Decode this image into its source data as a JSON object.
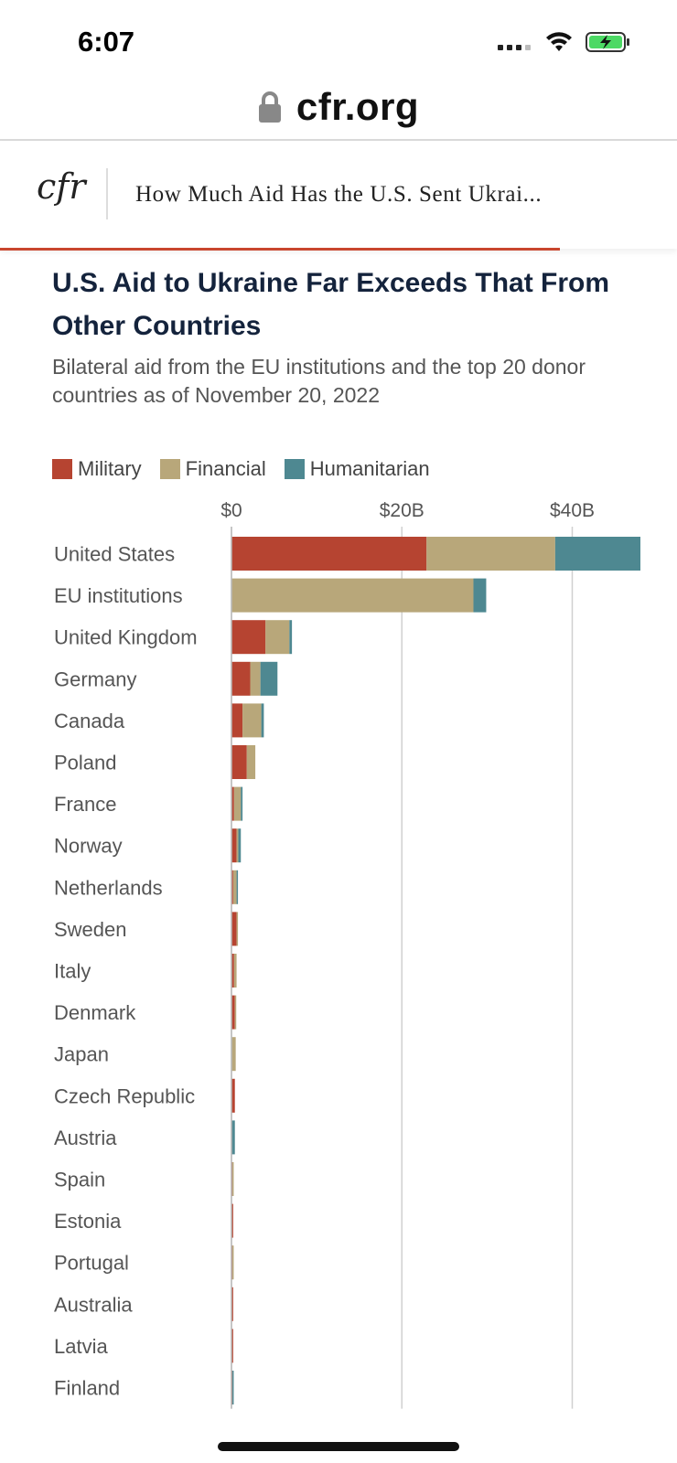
{
  "status_bar": {
    "time": "6:07"
  },
  "browser": {
    "url": "cfr.org"
  },
  "header": {
    "logo": "cfr",
    "article_title": "How Much Aid Has the U.S. Sent Ukrai..."
  },
  "colors": {
    "military": "#b64431",
    "financial": "#b8a77a",
    "humanitarian": "#4e8891",
    "accent": "#c9462e"
  },
  "chart_data": {
    "type": "bar",
    "orientation": "horizontal",
    "stacked": true,
    "title": "U.S. Aid to Ukraine Far Exceeds That From Other Countries",
    "subtitle": "Bilateral aid from the EU institutions and the top 20 donor countries as of November 20, 2022",
    "xlim": [
      0,
      48
    ],
    "xticks": [
      0,
      20,
      40
    ],
    "xtick_labels": [
      "$0",
      "$20B",
      "$40B"
    ],
    "legend": [
      "Military",
      "Financial",
      "Humanitarian"
    ],
    "categories": [
      "United States",
      "EU institutions",
      "United Kingdom",
      "Germany",
      "Canada",
      "Poland",
      "France",
      "Norway",
      "Netherlands",
      "Sweden",
      "Italy",
      "Denmark",
      "Japan",
      "Czech Republic",
      "Austria",
      "Spain",
      "Estonia",
      "Portugal",
      "Australia",
      "Latvia",
      "Finland"
    ],
    "series": [
      {
        "name": "Military",
        "values": [
          22.9,
          0,
          4.0,
          2.2,
          1.3,
          1.8,
          0.3,
          0.6,
          0.2,
          0.6,
          0.3,
          0.4,
          0,
          0.4,
          0,
          0.1,
          0.2,
          0.1,
          0.2,
          0.2,
          0.1
        ]
      },
      {
        "name": "Financial",
        "values": [
          15.1,
          28.4,
          2.8,
          1.2,
          2.2,
          1.0,
          0.8,
          0.2,
          0.4,
          0.1,
          0.3,
          0.1,
          0.5,
          0,
          0,
          0.1,
          0,
          0.1,
          0,
          0,
          0
        ]
      },
      {
        "name": "Humanitarian",
        "values": [
          10.0,
          1.5,
          0.3,
          2.0,
          0.3,
          0,
          0.2,
          0.3,
          0.1,
          0,
          0,
          0,
          0,
          0,
          0.4,
          0,
          0,
          0,
          0,
          0,
          0.1
        ]
      }
    ]
  }
}
